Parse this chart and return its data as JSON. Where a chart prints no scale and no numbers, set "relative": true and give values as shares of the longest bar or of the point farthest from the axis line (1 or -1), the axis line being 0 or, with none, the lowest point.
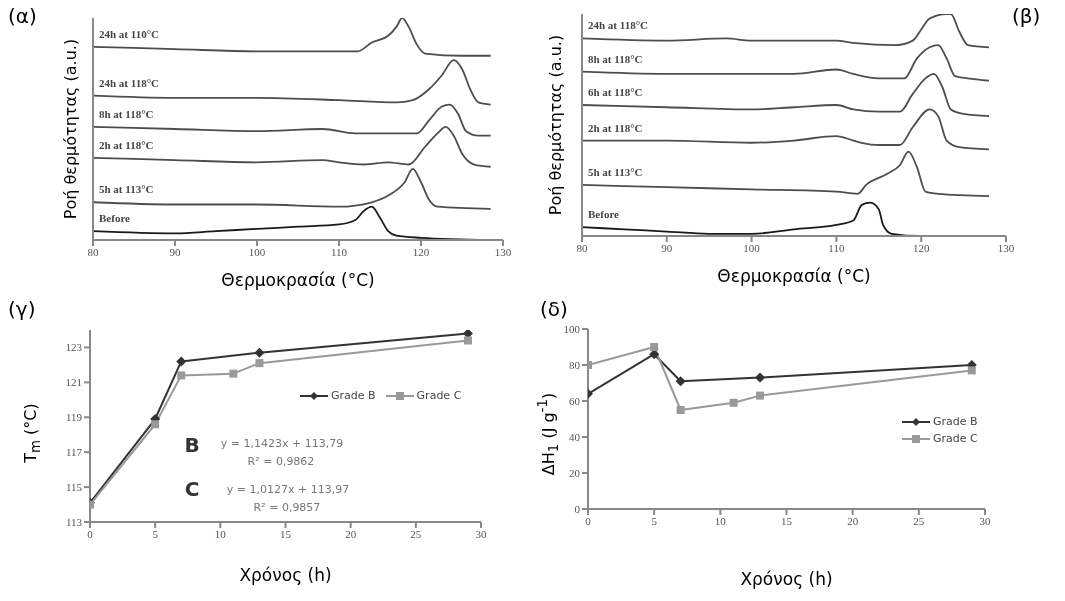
{
  "chart_data": [
    {
      "type": "line",
      "title": "(α)",
      "xlabel": "Θερμοκρασία (°C)",
      "ylabel": "Ροή θερμότητας (a.u.)",
      "relative": true,
      "xlim": [
        80,
        130
      ],
      "xticks": [
        80,
        90,
        100,
        110,
        120,
        130
      ],
      "marker": "none",
      "series": [
        {
          "name": "24h at 110°C",
          "color": "#4d4d4d",
          "x": [
            80,
            90,
            100,
            110,
            112.3,
            114,
            116,
            117,
            117.7,
            118.5,
            119.5,
            120.5,
            125,
            128.5
          ],
          "values": [
            0.87,
            0.86,
            0.85,
            0.85,
            0.85,
            0.89,
            0.92,
            0.96,
            1.0,
            0.96,
            0.88,
            0.84,
            0.83,
            0.83
          ]
        },
        {
          "name": "24h at 118°C",
          "color": "#4d4d4d",
          "x": [
            80,
            90,
            100,
            110,
            117,
            119,
            121,
            122.5,
            124,
            125,
            126,
            127,
            128.5
          ],
          "values": [
            0.65,
            0.64,
            0.64,
            0.63,
            0.62,
            0.63,
            0.68,
            0.74,
            0.81,
            0.77,
            0.68,
            0.62,
            0.61
          ]
        },
        {
          "name": "8h at 118°C",
          "color": "#4d4d4d",
          "x": [
            80,
            90,
            100,
            108,
            112,
            119.5,
            121,
            122.5,
            123.5,
            124.5,
            125.5,
            127,
            128.5
          ],
          "values": [
            0.51,
            0.5,
            0.49,
            0.5,
            0.48,
            0.48,
            0.54,
            0.6,
            0.61,
            0.57,
            0.49,
            0.47,
            0.47
          ]
        },
        {
          "name": "2h at 118°C",
          "color": "#4d4d4d",
          "x": [
            80,
            90,
            100,
            108,
            110,
            113,
            116,
            118.5,
            120.5,
            122,
            123,
            124,
            125,
            126.5,
            128.5
          ],
          "values": [
            0.37,
            0.36,
            0.35,
            0.36,
            0.35,
            0.34,
            0.35,
            0.34,
            0.42,
            0.48,
            0.51,
            0.47,
            0.39,
            0.34,
            0.33
          ]
        },
        {
          "name": "5h at 113°C",
          "color": "#4d4d4d",
          "x": [
            80,
            90,
            100,
            110,
            114,
            116,
            118,
            119,
            120,
            121,
            122,
            128.5
          ],
          "values": [
            0.17,
            0.16,
            0.16,
            0.15,
            0.17,
            0.2,
            0.26,
            0.32,
            0.26,
            0.18,
            0.15,
            0.14
          ]
        },
        {
          "name": "Before",
          "color": "#1a1a1a",
          "x": [
            80,
            90,
            95,
            100,
            105,
            110,
            112,
            113,
            114,
            115,
            116,
            117,
            120,
            128.5
          ],
          "values": [
            0.04,
            0.03,
            0.04,
            0.05,
            0.06,
            0.07,
            0.09,
            0.13,
            0.15,
            0.1,
            0.04,
            0.02,
            0.01,
            0.0
          ]
        }
      ]
    },
    {
      "type": "line",
      "title": "(β)",
      "xlabel": "Θερμοκρασία (°C)",
      "ylabel": "Ροή θερμότητας (a.u.)",
      "relative": true,
      "xlim": [
        80,
        130
      ],
      "xticks": [
        80,
        90,
        100,
        110,
        120,
        130
      ],
      "marker": "none",
      "series": [
        {
          "name": "24h at 118°C",
          "color": "#4d4d4d",
          "x": [
            80,
            90,
            97,
            100,
            105,
            110,
            112,
            117,
            119,
            120,
            121,
            123,
            123.5,
            124.5,
            125.5,
            128
          ],
          "values": [
            0.89,
            0.88,
            0.89,
            0.88,
            0.88,
            0.88,
            0.87,
            0.86,
            0.88,
            0.93,
            0.98,
            1.0,
            1.0,
            0.92,
            0.86,
            0.85
          ]
        },
        {
          "name": "8h at 118°C",
          "color": "#4d4d4d",
          "x": [
            80,
            90,
            100,
            105,
            110,
            112,
            115,
            118,
            119.5,
            121,
            122,
            123,
            124,
            125.5,
            128
          ],
          "values": [
            0.74,
            0.73,
            0.73,
            0.73,
            0.75,
            0.73,
            0.71,
            0.71,
            0.8,
            0.85,
            0.86,
            0.8,
            0.72,
            0.71,
            0.7
          ]
        },
        {
          "name": "6h at 118°C",
          "color": "#4d4d4d",
          "x": [
            80,
            90,
            100,
            105,
            110,
            112,
            115,
            117.5,
            119,
            120.5,
            121.5,
            122.5,
            123.5,
            125,
            128
          ],
          "values": [
            0.59,
            0.58,
            0.57,
            0.58,
            0.59,
            0.57,
            0.56,
            0.56,
            0.64,
            0.71,
            0.73,
            0.67,
            0.57,
            0.55,
            0.54
          ]
        },
        {
          "name": "2h at 118°C",
          "color": "#4d4d4d",
          "x": [
            80,
            90,
            100,
            105,
            110,
            112,
            113,
            115,
            117.5,
            119,
            121,
            122,
            123,
            124.5,
            128
          ],
          "values": [
            0.43,
            0.43,
            0.42,
            0.43,
            0.45,
            0.43,
            0.42,
            0.41,
            0.41,
            0.49,
            0.57,
            0.54,
            0.43,
            0.4,
            0.39
          ]
        },
        {
          "name": "5h at 113°C",
          "color": "#4d4d4d",
          "x": [
            80,
            90,
            100,
            110,
            112.5,
            113.5,
            116,
            117.5,
            118.5,
            119.5,
            120.5,
            122,
            128
          ],
          "values": [
            0.23,
            0.22,
            0.21,
            0.2,
            0.19,
            0.23,
            0.28,
            0.32,
            0.38,
            0.31,
            0.2,
            0.19,
            0.18
          ]
        },
        {
          "name": "Before",
          "color": "#1a1a1a",
          "x": [
            80,
            85,
            90,
            95,
            100,
            105,
            110,
            112,
            113,
            114,
            115,
            115.5,
            116.5,
            120,
            128
          ],
          "values": [
            0.04,
            0.03,
            0.02,
            0.01,
            0.01,
            0.03,
            0.05,
            0.07,
            0.14,
            0.15,
            0.12,
            0.05,
            0.01,
            0.0,
            0.0
          ]
        }
      ]
    },
    {
      "type": "line",
      "title": "(γ)",
      "xlabel": "Χρόνος (h)",
      "ylabel": "T$_{m}$ (°C)",
      "xlim": [
        0,
        30
      ],
      "xticks": [
        0,
        5,
        10,
        15,
        20,
        25,
        30
      ],
      "ylim": [
        113,
        124
      ],
      "yticks": [
        113,
        115,
        117,
        119,
        121,
        123
      ],
      "legend": "right",
      "annotations": [
        "B",
        "y = 1,1423x + 113,79",
        "R² = 0,9862",
        "C",
        "y = 1,0127x + 113,97",
        "R² = 0,9857"
      ],
      "series": [
        {
          "name": "Grade B",
          "color": "#333333",
          "marker": "diamond",
          "x": [
            0,
            5,
            7,
            13,
            29
          ],
          "values": [
            114.1,
            118.9,
            122.2,
            122.7,
            123.8
          ]
        },
        {
          "name": "Grade C",
          "color": "#999999",
          "marker": "square",
          "x": [
            0,
            5,
            7,
            11,
            13,
            29
          ],
          "values": [
            114.0,
            118.6,
            121.4,
            121.5,
            122.1,
            123.4
          ]
        }
      ]
    },
    {
      "type": "line",
      "title": "(δ)",
      "xlabel": "Χρόνος (h)",
      "ylabel": "ΔH$_{1}$ (J g$^{-1}$)",
      "xlim": [
        0,
        30
      ],
      "xticks": [
        0,
        5,
        10,
        15,
        20,
        25,
        30
      ],
      "ylim": [
        0,
        100
      ],
      "yticks": [
        0,
        20,
        40,
        60,
        80,
        100
      ],
      "legend": "right",
      "series": [
        {
          "name": "Grade B",
          "color": "#333333",
          "marker": "diamond",
          "x": [
            0,
            5,
            7,
            13,
            29
          ],
          "values": [
            64,
            86,
            71,
            73,
            80
          ]
        },
        {
          "name": "Grade C",
          "color": "#999999",
          "marker": "square",
          "x": [
            0,
            5,
            7,
            11,
            13,
            29
          ],
          "values": [
            80,
            90,
            55,
            59,
            63,
            77
          ]
        }
      ]
    }
  ]
}
